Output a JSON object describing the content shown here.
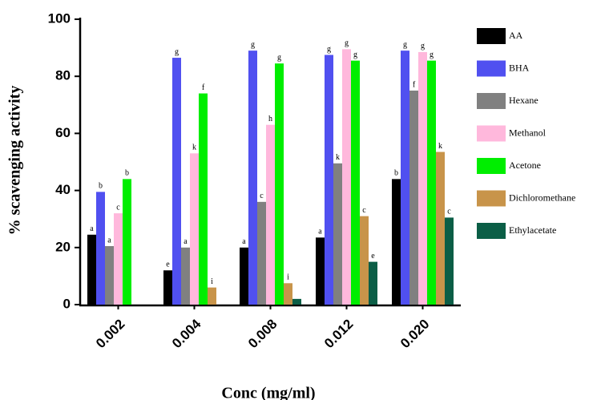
{
  "chart_data": {
    "type": "bar",
    "x_label": "Conc (mg/ml)",
    "y_label": "% scavenging activity",
    "categories": [
      "0.002",
      "0.004",
      "0.008",
      "0.012",
      "0.020"
    ],
    "ylim": [
      0,
      100
    ],
    "yticks": [
      0,
      20,
      40,
      60,
      80,
      100
    ],
    "series": [
      {
        "name": "AA",
        "color": "#000000",
        "values": [
          24.5,
          12,
          20,
          23.5,
          44
        ],
        "letters": [
          "a",
          "e",
          "a",
          "a",
          "b"
        ]
      },
      {
        "name": "BHA",
        "color": "#5050f0",
        "values": [
          39.5,
          86.5,
          89,
          87.5,
          89
        ],
        "letters": [
          "b",
          "g",
          "g",
          "g",
          "g"
        ]
      },
      {
        "name": "Hexane",
        "color": "#808080",
        "values": [
          20.5,
          20,
          36,
          49.5,
          75
        ],
        "letters": [
          "a",
          "a",
          "c",
          "k",
          "f"
        ]
      },
      {
        "name": "Methanol",
        "color": "#ffb8dc",
        "values": [
          32,
          53,
          63,
          89.5,
          88.5
        ],
        "letters": [
          "c",
          "k",
          "h",
          "g",
          "g"
        ]
      },
      {
        "name": "Acetone",
        "color": "#00ee00",
        "values": [
          44,
          74,
          84.5,
          85.5,
          85.5
        ],
        "letters": [
          "b",
          "f",
          "g",
          "g",
          "g"
        ]
      },
      {
        "name": "Dichloromethane",
        "color": "#c8944a",
        "values": [
          null,
          6,
          7.5,
          31,
          53.5
        ],
        "letters": [
          null,
          "i",
          "i",
          "c",
          "k"
        ]
      },
      {
        "name": "Ethylacetate",
        "color": "#0b5e46",
        "values": [
          null,
          null,
          2,
          15,
          30.5
        ],
        "letters": [
          null,
          null,
          null,
          "e",
          "c"
        ]
      }
    ]
  }
}
